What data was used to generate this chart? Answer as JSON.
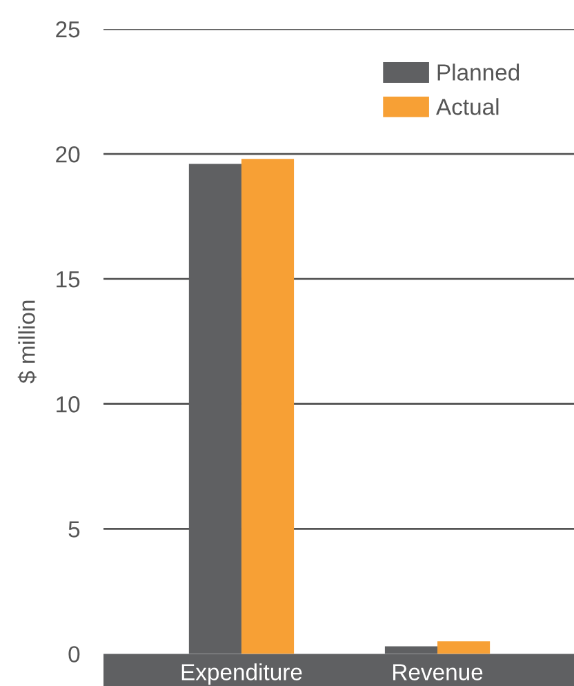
{
  "chart_data": {
    "type": "bar",
    "ylabel": "$ million",
    "categories": [
      "Expenditure",
      "Revenue"
    ],
    "series": [
      {
        "name": "Planned",
        "color": "#5f6062",
        "values": [
          19.6,
          0.3
        ]
      },
      {
        "name": "Actual",
        "color": "#f7a035",
        "values": [
          19.8,
          0.5
        ]
      }
    ],
    "ylim": [
      0,
      25
    ],
    "yticks": [
      0,
      5,
      10,
      15,
      20,
      25
    ],
    "grid": "y",
    "legend": "top right"
  }
}
